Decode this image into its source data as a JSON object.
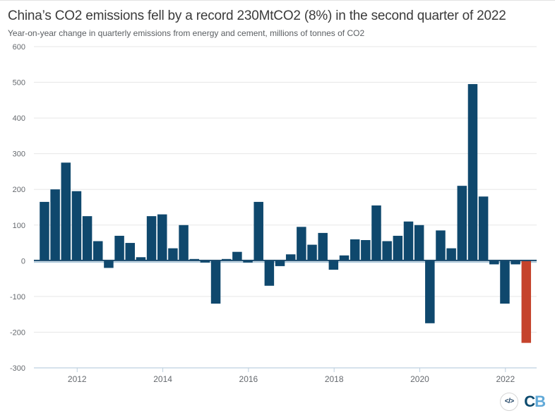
{
  "header": {
    "title": "China’s CO2 emissions fell by a record 230MtCO2 (8%) in the second quarter of 2022",
    "subtitle": "Year-on-year change in quarterly emissions from energy and cement, millions of tonnes of CO2"
  },
  "chart_data": {
    "type": "bar",
    "title": "China’s CO2 emissions fell by a record 230MtCO2 (8%) in the second quarter of 2022",
    "subtitle": "Year-on-year change in quarterly emissions from energy and cement, millions of tonnes of CO2",
    "unit": "MtCO2",
    "categories": [
      "2011 Q1",
      "2011 Q2",
      "2011 Q3",
      "2011 Q4",
      "2012 Q1",
      "2012 Q2",
      "2012 Q3",
      "2012 Q4",
      "2013 Q1",
      "2013 Q2",
      "2013 Q3",
      "2013 Q4",
      "2014 Q1",
      "2014 Q2",
      "2014 Q3",
      "2014 Q4",
      "2015 Q1",
      "2015 Q2",
      "2015 Q3",
      "2015 Q4",
      "2016 Q1",
      "2016 Q2",
      "2016 Q3",
      "2016 Q4",
      "2017 Q1",
      "2017 Q2",
      "2017 Q3",
      "2017 Q4",
      "2018 Q1",
      "2018 Q2",
      "2018 Q3",
      "2018 Q4",
      "2019 Q1",
      "2019 Q2",
      "2019 Q3",
      "2019 Q4",
      "2020 Q1",
      "2020 Q2",
      "2020 Q3",
      "2020 Q4",
      "2021 Q1",
      "2021 Q2",
      "2021 Q3",
      "2021 Q4",
      "2022 Q1",
      "2022 Q2"
    ],
    "values": [
      165,
      200,
      275,
      195,
      125,
      55,
      -20,
      70,
      50,
      10,
      125,
      130,
      35,
      100,
      5,
      -5,
      -120,
      5,
      25,
      -5,
      165,
      -70,
      -15,
      18,
      95,
      45,
      78,
      -25,
      15,
      60,
      58,
      155,
      55,
      70,
      110,
      100,
      -175,
      85,
      35,
      210,
      495,
      180,
      -10,
      -120,
      -10,
      -230
    ],
    "highlight_index": 45,
    "bar_color": "#0f486d",
    "highlight_color": "#c5432c",
    "zero_line_color": "#1a4a6d",
    "zero_line_light_color": "#a9c5da",
    "axis_line_color": "#c9d9e6",
    "grid_color": "#e7e7e7",
    "grid": true,
    "legend": "none",
    "ylim": [
      -300,
      600
    ],
    "yticks": [
      600,
      500,
      400,
      300,
      200,
      100,
      0,
      -100,
      -200,
      -300
    ],
    "xtick_labels": [
      "2012",
      "2014",
      "2016",
      "2018",
      "2020",
      "2022"
    ],
    "xlabel": "",
    "ylabel": ""
  },
  "footer": {
    "embed_icon": "</>",
    "logo_c": "C",
    "logo_b": "B"
  }
}
